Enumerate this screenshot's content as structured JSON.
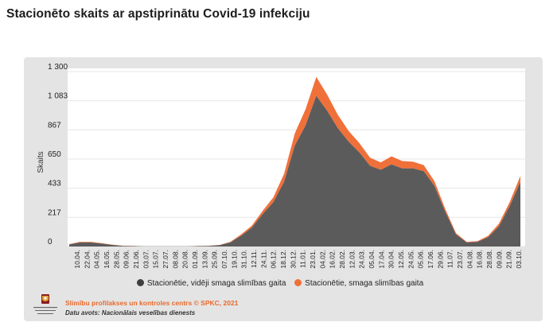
{
  "title": "Stacionēto skaits ar apstiprinātu Covid-19 infekciju",
  "colors": {
    "panel": "#e4e4e4",
    "gray_series": "#5b5b5b",
    "orange_series": "#f0703a",
    "credit": "#e86a2d"
  },
  "footer": {
    "credit": "Slimību profilakses un kontroles centrs © SPKC, 2021",
    "source": "Datu avots: Nacionālais veselības dienests",
    "logo_text": "Slimību profilakses un kontroles centrs"
  },
  "chart_data": {
    "type": "area",
    "ylabel": "Skaits",
    "xlabel": "",
    "ylim": [
      0,
      1300
    ],
    "yticks": [
      0,
      217,
      433,
      650,
      867,
      1083,
      1300
    ],
    "ytick_labels": [
      "0",
      "217",
      "433",
      "650",
      "867",
      "1 083",
      "1 300"
    ],
    "x_tick_labels": [
      "10.04.",
      "22.04.",
      "04.05.",
      "16.05.",
      "28.05.",
      "09.06.",
      "21.06.",
      "03.07.",
      "15.07.",
      "27.07.",
      "08.08.",
      "20.08.",
      "01.09.",
      "13.09.",
      "25.09.",
      "07.10.",
      "19.10.",
      "31.10.",
      "12.11.",
      "24.11.",
      "06.12.",
      "18.12.",
      "30.12.",
      "11.01.",
      "23.01.",
      "04.02.",
      "16.02.",
      "28.02.",
      "12.03.",
      "24.03.",
      "05.04.",
      "17.04.",
      "30.04.",
      "12.05.",
      "24.05.",
      "05.06.",
      "17.06.",
      "29.06.",
      "11.07.",
      "23.07.",
      "04.08.",
      "16.08.",
      "28.08.",
      "09.09.",
      "21.09.",
      "03.10."
    ],
    "legend_position": "bottom",
    "series": [
      {
        "name": "Stacionētie, vidēji smaga slimības gaita",
        "color": "#5b5b5b",
        "values": [
          15,
          30,
          30,
          22,
          12,
          5,
          3,
          1,
          1,
          1,
          2,
          2,
          3,
          5,
          10,
          30,
          80,
          140,
          240,
          330,
          480,
          750,
          900,
          1120,
          1010,
          880,
          780,
          700,
          600,
          570,
          610,
          580,
          580,
          560,
          450,
          260,
          90,
          30,
          35,
          70,
          150,
          300,
          480
        ]
      },
      {
        "name": "Stacionētie, smaga slimības gaita",
        "color": "#f0703a",
        "values": [
          3,
          5,
          5,
          3,
          2,
          1,
          1,
          0,
          0,
          0,
          0,
          0,
          1,
          1,
          2,
          5,
          10,
          15,
          25,
          35,
          60,
          90,
          120,
          140,
          120,
          100,
          80,
          70,
          60,
          55,
          60,
          55,
          50,
          45,
          35,
          20,
          10,
          5,
          5,
          10,
          20,
          30,
          45
        ]
      }
    ]
  }
}
